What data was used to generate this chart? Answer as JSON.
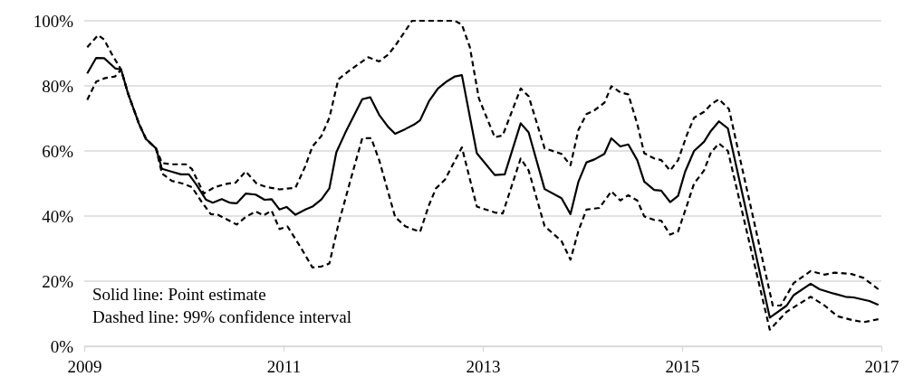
{
  "chart_data": {
    "type": "line",
    "xlim": [
      2009,
      2017
    ],
    "xticks": [
      2009,
      2011,
      2013,
      2015,
      2017
    ],
    "ylim": [
      0,
      100
    ],
    "yticks": [
      {
        "value": 0,
        "label": "0%"
      },
      {
        "value": 20,
        "label": "20%"
      },
      {
        "value": 40,
        "label": "40%"
      },
      {
        "value": 60,
        "label": "60%"
      },
      {
        "value": 80,
        "label": "80%"
      },
      {
        "value": 100,
        "label": "100%"
      }
    ],
    "grid": "y",
    "marker": "none",
    "annotations": [
      "Solid line: Point estimate",
      "Dashed line: 99% confidence interval"
    ],
    "series": [
      {
        "color": "#000000",
        "line_style": "solid",
        "x": [
          2009.03,
          2009.12,
          2009.2,
          2009.31,
          2009.37,
          2009.44,
          2009.55,
          2009.62,
          2009.72,
          2009.78,
          2009.88,
          2009.97,
          2010.05,
          2010.12,
          2010.22,
          2010.29,
          2010.38,
          2010.46,
          2010.53,
          2010.62,
          2010.72,
          2010.81,
          2010.88,
          2010.96,
          2011.03,
          2011.12,
          2011.22,
          2011.29,
          2011.38,
          2011.46,
          2011.53,
          2011.62,
          2011.79,
          2011.87,
          2011.96,
          2012.05,
          2012.12,
          2012.22,
          2012.31,
          2012.37,
          2012.46,
          2012.55,
          2012.64,
          2012.72,
          2012.79,
          2012.94,
          2013.12,
          2013.22,
          2013.38,
          2013.46,
          2013.62,
          2013.79,
          2013.88,
          2013.96,
          2014.04,
          2014.12,
          2014.22,
          2014.29,
          2014.38,
          2014.46,
          2014.55,
          2014.62,
          2014.72,
          2014.79,
          2014.88,
          2014.96,
          2015.03,
          2015.12,
          2015.22,
          2015.29,
          2015.37,
          2015.46,
          2015.88,
          2016.05,
          2016.12,
          2016.29,
          2016.38,
          2016.52,
          2016.64,
          2016.72,
          2016.88,
          2016.97
        ],
        "values": [
          83.8,
          88.6,
          88.5,
          85.4,
          85,
          77.6,
          68.3,
          63.7,
          60.8,
          54.5,
          53.6,
          52.8,
          52.8,
          49.9,
          45.1,
          44.1,
          45.2,
          44.1,
          43.9,
          46.9,
          46.6,
          45,
          45.2,
          42,
          42.8,
          40.4,
          42,
          42.9,
          45.1,
          48.5,
          59.6,
          65.6,
          75.9,
          76.5,
          71.1,
          67.4,
          65.3,
          66.7,
          68.1,
          69.4,
          75.3,
          79.2,
          81.4,
          82.9,
          83.3,
          59.3,
          52.6,
          52.8,
          68.5,
          65.7,
          48.3,
          45.5,
          40.6,
          50.6,
          56.5,
          57.4,
          59.1,
          63.9,
          61.4,
          62,
          57.2,
          50.6,
          48,
          47.8,
          44.3,
          46.2,
          53.6,
          60,
          62.8,
          66.2,
          69.1,
          66.9,
          8.8,
          12.5,
          15.7,
          19.2,
          17.5,
          16.2,
          15.2,
          15,
          13.9,
          12.7
        ]
      },
      {
        "color": "#000000",
        "line_style": "dashed",
        "x": [
          2009.03,
          2009.14,
          2009.2,
          2009.28,
          2009.37,
          2009.44,
          2009.55,
          2009.62,
          2009.72,
          2009.78,
          2009.88,
          2010.02,
          2010.08,
          2010.2,
          2010.31,
          2010.43,
          2010.52,
          2010.62,
          2010.73,
          2010.83,
          2010.96,
          2011.12,
          2011.22,
          2011.29,
          2011.38,
          2011.46,
          2011.55,
          2011.67,
          2011.85,
          2011.96,
          2012.05,
          2012.12,
          2012.29,
          2012.72,
          2012.79,
          2012.87,
          2012.96,
          2013.12,
          2013.2,
          2013.38,
          2013.46,
          2013.62,
          2013.79,
          2013.88,
          2013.96,
          2014.04,
          2014.12,
          2014.22,
          2014.29,
          2014.38,
          2014.46,
          2014.55,
          2014.62,
          2014.72,
          2014.79,
          2014.88,
          2014.96,
          2015.05,
          2015.12,
          2015.22,
          2015.29,
          2015.37,
          2015.47,
          2015.91,
          2015.99,
          2016.12,
          2016.29,
          2016.43,
          2016.53,
          2016.7,
          2016.82,
          2016.97
        ],
        "values": [
          91.9,
          95.6,
          94.2,
          89.6,
          85,
          77.6,
          68.3,
          63.7,
          60.8,
          56.3,
          55.9,
          55.9,
          54.5,
          46.9,
          48.9,
          49.9,
          50.3,
          53.7,
          50,
          48.9,
          48.2,
          48.7,
          55.4,
          61.4,
          64.6,
          70.2,
          82,
          84.9,
          88.8,
          87.5,
          89.6,
          92.3,
          100,
          100,
          98.8,
          91.9,
          76.2,
          64.2,
          64.8,
          79.2,
          76.8,
          60.8,
          59.1,
          55.6,
          66.5,
          71.3,
          72.5,
          74.8,
          79.9,
          78,
          77.4,
          68.3,
          59.3,
          57.7,
          57.2,
          54,
          57.2,
          65.1,
          70.2,
          72,
          74.3,
          75.9,
          72.9,
          12.5,
          12.5,
          19.4,
          23.1,
          22,
          22.6,
          22.2,
          21,
          17.5
        ]
      },
      {
        "color": "#000000",
        "line_style": "dashed",
        "x": [
          2009.03,
          2009.12,
          2009.21,
          2009.31,
          2009.37,
          2009.44,
          2009.55,
          2009.62,
          2009.72,
          2009.78,
          2009.88,
          2010,
          2010.08,
          2010.18,
          2010.27,
          2010.34,
          2010.53,
          2010.62,
          2010.72,
          2010.8,
          2010.88,
          2010.96,
          2011.04,
          2011.17,
          2011.29,
          2011.38,
          2011.46,
          2011.55,
          2011.67,
          2011.79,
          2011.88,
          2011.96,
          2012.12,
          2012.22,
          2012.37,
          2012.46,
          2012.53,
          2012.62,
          2012.79,
          2012.94,
          2013.12,
          2013.2,
          2013.38,
          2013.46,
          2013.62,
          2013.79,
          2013.88,
          2013.96,
          2014.04,
          2014.17,
          2014.29,
          2014.38,
          2014.46,
          2014.55,
          2014.62,
          2014.72,
          2014.79,
          2014.88,
          2014.96,
          2015.05,
          2015.12,
          2015.22,
          2015.29,
          2015.37,
          2015.46,
          2015.88,
          2016.05,
          2016.29,
          2016.43,
          2016.56,
          2016.7,
          2016.82,
          2016.97
        ],
        "values": [
          75.7,
          81.3,
          82.4,
          82.9,
          85,
          77.6,
          68.3,
          63.7,
          60.8,
          53.1,
          50.8,
          49.9,
          48.9,
          44.3,
          40.6,
          40.4,
          37.4,
          39.7,
          41.4,
          40.2,
          41.7,
          36,
          36.8,
          30.5,
          24.2,
          24.5,
          25.4,
          37.4,
          50.8,
          63.9,
          63.9,
          57.2,
          39.7,
          36.9,
          35.1,
          43.4,
          48.5,
          51.2,
          61.1,
          42.9,
          41.1,
          40.8,
          57.7,
          54,
          36.9,
          32.3,
          26.6,
          35.5,
          42,
          42.5,
          47.6,
          44.8,
          46.4,
          44.8,
          39.9,
          38.8,
          38.6,
          34.3,
          35.3,
          43.4,
          50,
          54,
          59.6,
          62.3,
          60,
          5.1,
          10.6,
          15.2,
          12.5,
          9.2,
          8.1,
          7.4,
          8.3
        ]
      }
    ]
  }
}
